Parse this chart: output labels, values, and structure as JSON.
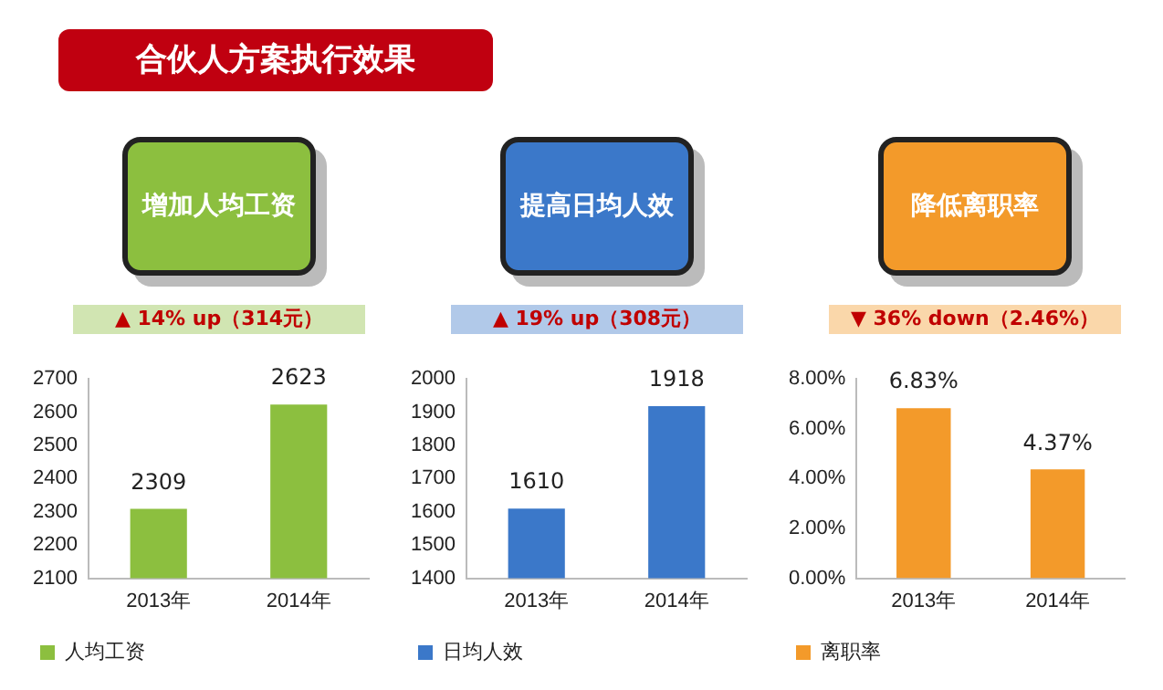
{
  "chart_data": [
    {
      "type": "bar",
      "title": "合伙人方案执行效果",
      "subtitle": "增加人均工资",
      "annotations": [
        "▲ 14% up（314元）"
      ],
      "categories": [
        "2013年",
        "2014年"
      ],
      "series": [
        {
          "name": "人均工资",
          "color": "#8cbf3f",
          "values": [
            2309,
            2623
          ]
        }
      ],
      "ylim": [
        2100,
        2700
      ],
      "yticks": [
        2100,
        2200,
        2300,
        2400,
        2500,
        2600,
        2700
      ],
      "grid": false,
      "legend": "bottom",
      "data_labels": true
    },
    {
      "type": "bar",
      "subtitle": "提高日均人效",
      "annotations": [
        "▲ 19% up（308元）"
      ],
      "categories": [
        "2013年",
        "2014年"
      ],
      "series": [
        {
          "name": "日均人效",
          "color": "#3b78c9",
          "values": [
            1610,
            1918
          ]
        }
      ],
      "ylim": [
        1400,
        2000
      ],
      "yticks": [
        1400,
        1500,
        1600,
        1700,
        1800,
        1900,
        2000
      ],
      "grid": false,
      "legend": "bottom",
      "data_labels": true
    },
    {
      "type": "bar",
      "subtitle": "降低离职率",
      "annotations": [
        "▼ 36% down（2.46%）"
      ],
      "categories": [
        "2013年",
        "2014年"
      ],
      "series": [
        {
          "name": "离职率",
          "color": "#f39a2a",
          "values": [
            6.83,
            4.37
          ],
          "value_labels": [
            "6.83%",
            "4.37%"
          ]
        }
      ],
      "ylim": [
        0,
        8
      ],
      "yticks": [
        {
          "value": 0,
          "label": "0.00%"
        },
        {
          "value": 2,
          "label": "2.00%"
        },
        {
          "value": 4,
          "label": "4.00%"
        },
        {
          "value": 6,
          "label": "6.00%"
        },
        {
          "value": 8,
          "label": "8.00%"
        }
      ],
      "grid": false,
      "legend": "bottom"
    }
  ]
}
